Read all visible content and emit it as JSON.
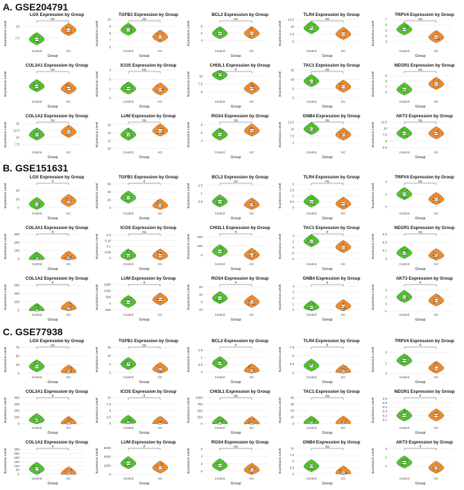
{
  "figure": {
    "groups": [
      "Control",
      "KC"
    ],
    "x_label": "Group",
    "y_label": "Expression Level",
    "colors": {
      "control": "#4fc42b",
      "kc": "#f28a2a",
      "bar": "#555555",
      "box": "#ffffff"
    }
  },
  "sections": [
    {
      "title": "A.  GSE204791"
    },
    {
      "title": "B.  GSE151631"
    },
    {
      "title": "C.  GSE77938"
    }
  ],
  "chart_data": [
    {
      "type": "violin",
      "section": "A",
      "gene": "LOX",
      "title": "LOX Expression by Group",
      "sig": "ns",
      "ylim": [
        5.5,
        11.5
      ],
      "ticks": [
        7.5,
        10.0
      ],
      "median": [
        7.2,
        9.2
      ]
    },
    {
      "type": "violin",
      "section": "A",
      "gene": "TGFB1",
      "title": "TGFB1 Expression by Group",
      "sig": "ns",
      "ylim": [
        6,
        10
      ],
      "ticks": [
        6,
        7,
        8,
        9,
        10
      ],
      "median": [
        8.5,
        7.5
      ]
    },
    {
      "type": "violin",
      "section": "A",
      "gene": "BCL2",
      "title": "BCL2 Expression by Group",
      "sig": "ns",
      "ylim": [
        3,
        7
      ],
      "ticks": [
        4,
        5,
        6
      ],
      "median": [
        5.0,
        5.0
      ]
    },
    {
      "type": "violin",
      "section": "A",
      "gene": "TLR4",
      "title": "TLR4 Expression by Group",
      "sig": "ns",
      "ylim": [
        3,
        12.5
      ],
      "ticks": [
        5.0,
        7.5,
        10.0,
        12.5
      ],
      "median": [
        9.5,
        7.5
      ]
    },
    {
      "type": "violin",
      "section": "A",
      "gene": "TRPV4",
      "title": "TRPV4 Expression by Group",
      "sig": "ns",
      "ylim": [
        2,
        7
      ],
      "ticks": [
        3,
        4,
        5,
        6,
        7
      ],
      "median": [
        5.2,
        3.8
      ]
    },
    {
      "type": "violin",
      "section": "A",
      "gene": "COL3A1",
      "title": "COL3A1 Expression by Group",
      "sig": "ns",
      "ylim": [
        6,
        12
      ],
      "ticks": [],
      "median": [
        8.5,
        8.0
      ]
    },
    {
      "type": "violin",
      "section": "A",
      "gene": "ICOS",
      "title": "ICOS Expression by Group",
      "sig": "ns",
      "ylim": [
        0,
        3
      ],
      "ticks": [
        0,
        1,
        2,
        3
      ],
      "median": [
        1.0,
        0.9
      ]
    },
    {
      "type": "violin",
      "section": "A",
      "gene": "CHI3L1",
      "title": "CHI3L1 Expression by Group",
      "sig": "#",
      "ylim": [
        3,
        12
      ],
      "ticks": [
        5.0,
        7.5,
        10.0
      ],
      "median": [
        10.5,
        6.0
      ]
    },
    {
      "type": "violin",
      "section": "A",
      "gene": "TAC1",
      "title": "TAC1 Expression by Group",
      "sig": "ns",
      "ylim": [
        0,
        15
      ],
      "ticks": [
        0,
        5,
        10,
        15
      ],
      "median": [
        9,
        6
      ]
    },
    {
      "type": "violin",
      "section": "A",
      "gene": "NEGR1",
      "title": "NEGR1 Expression by Group",
      "sig": "ns",
      "ylim": [
        5,
        10
      ],
      "ticks": [
        6,
        7,
        8,
        9
      ],
      "median": [
        6.5,
        7.5
      ]
    },
    {
      "type": "violin",
      "section": "A",
      "gene": "COL1A2",
      "title": "COL1A2 Expression by Group",
      "sig": "ns",
      "ylim": [
        6,
        16
      ],
      "ticks": [
        7.5,
        10.0,
        12.5,
        15.0
      ],
      "median": [
        11,
        12
      ]
    },
    {
      "type": "violin",
      "section": "A",
      "gene": "LUM",
      "title": "LUM Expression by Group",
      "sig": "ns",
      "ylim": [
        10,
        17
      ],
      "ticks": [
        10,
        12,
        14,
        16
      ],
      "median": [
        13.5,
        14.5
      ]
    },
    {
      "type": "violin",
      "section": "A",
      "gene": "RGS4",
      "title": "RGS4 Expression by Group",
      "sig": "ns",
      "ylim": [
        2,
        9
      ],
      "ticks": [
        4,
        6,
        8
      ],
      "median": [
        5.5,
        6.5
      ]
    },
    {
      "type": "violin",
      "section": "A",
      "gene": "GNB4",
      "title": "GNB4 Expression by Group",
      "sig": "ns",
      "ylim": [
        3,
        13
      ],
      "ticks": [
        5.0,
        7.5,
        10.0,
        12.5
      ],
      "median": [
        10,
        8
      ]
    },
    {
      "type": "violin",
      "section": "A",
      "gene": "AKT3",
      "title": "AKT3 Expression by Group",
      "sig": "ns",
      "ylim": [
        2,
        13
      ],
      "ticks": [
        2.5,
        5.0,
        7.5,
        10.0,
        12.5
      ],
      "median": [
        8,
        8
      ]
    },
    {
      "type": "violin",
      "section": "B",
      "gene": "LOX",
      "title": "LOX Expression by Group",
      "sig": "#",
      "ylim": [
        -5,
        60
      ],
      "ticks": [
        0,
        20,
        40
      ],
      "median": [
        8,
        15
      ]
    },
    {
      "type": "violin",
      "section": "B",
      "gene": "TGFB1",
      "title": "TGFB1 Expression by Group",
      "sig": "#",
      "ylim": [
        -5,
        65
      ],
      "ticks": [
        0,
        20,
        40,
        60
      ],
      "median": [
        25,
        5
      ]
    },
    {
      "type": "violin",
      "section": "B",
      "gene": "BCL2",
      "title": "BCL2 Expression by Group",
      "sig": "ns",
      "ylim": [
        0,
        1.7
      ],
      "ticks": [
        0.5,
        1.0,
        1.5
      ],
      "median": [
        0.5,
        0.3
      ]
    },
    {
      "type": "violin",
      "section": "B",
      "gene": "TLR4",
      "title": "TLR4 Expression by Group",
      "sig": "ns",
      "ylim": [
        -0.2,
        2.2
      ],
      "ticks": [
        0.0,
        0.5,
        1.0,
        1.5,
        2.0
      ],
      "median": [
        0.5,
        0.3
      ]
    },
    {
      "type": "violin",
      "section": "B",
      "gene": "TRPV4",
      "title": "TRPV4 Expression by Group",
      "sig": "ns",
      "ylim": [
        -0.5,
        4
      ],
      "ticks": [
        0,
        2,
        4
      ],
      "median": [
        2.0,
        1.2
      ]
    },
    {
      "type": "violin",
      "section": "B",
      "gene": "COL3A1",
      "title": "COL3A1 Expression by Group",
      "sig": "#",
      "ylim": [
        -20,
        320
      ],
      "ticks": [
        0,
        100,
        200,
        300
      ],
      "median": [
        0,
        10
      ]
    },
    {
      "type": "violin",
      "section": "B",
      "gene": "ICOS",
      "title": "ICOS Expression by Group",
      "sig": "ns",
      "ylim": [
        -0.02,
        0.22
      ],
      "ticks": [
        0.0,
        0.05,
        0.1,
        0.15,
        0.2
      ],
      "median": [
        0.02,
        0.02
      ]
    },
    {
      "type": "violin",
      "section": "B",
      "gene": "CHI3L1",
      "title": "CHI3L1 Expression by Group",
      "sig": "#",
      "ylim": [
        -60,
        250
      ],
      "ticks": [
        0,
        100,
        200
      ],
      "median": [
        40,
        0
      ]
    },
    {
      "type": "violin",
      "section": "B",
      "gene": "TAC1",
      "title": "TAC1 Expression by Group",
      "sig": "#",
      "ylim": [
        -4.5,
        5
      ],
      "ticks": [
        -4,
        -2,
        0,
        2,
        4
      ],
      "median": [
        2,
        0
      ]
    },
    {
      "type": "violin",
      "section": "B",
      "gene": "NEGR1",
      "title": "NEGR1 Expression by Group",
      "sig": "ns",
      "ylim": [
        -0.02,
        0.32
      ],
      "ticks": [
        0.0,
        0.1,
        0.2,
        0.3
      ],
      "median": [
        0.07,
        0.04
      ]
    },
    {
      "type": "violin",
      "section": "B",
      "gene": "COL1A2",
      "title": "COL1A2 Expression by Group",
      "sig": "#",
      "ylim": [
        -20,
        650
      ],
      "ticks": [
        0,
        200,
        400,
        600
      ],
      "median": [
        0,
        50
      ]
    },
    {
      "type": "violin",
      "section": "B",
      "gene": "LUM",
      "title": "LUM Expression by Group",
      "sig": "#",
      "ylim": [
        -600,
        1600
      ],
      "ticks": [
        -500,
        0,
        500,
        1000,
        1500
      ],
      "median": [
        100,
        300
      ]
    },
    {
      "type": "violin",
      "section": "B",
      "gene": "RGS4",
      "title": "RGS4 Expression by Group",
      "sig": "#",
      "ylim": [
        -12,
        25
      ],
      "ticks": [
        -10,
        0,
        10,
        20
      ],
      "median": [
        5,
        0
      ]
    },
    {
      "type": "violin",
      "section": "B",
      "gene": "GNB4",
      "title": "GNB4 Expression by Group",
      "sig": "#",
      "ylim": [
        -0.2,
        4.5
      ],
      "ticks": [
        0,
        1,
        2,
        3,
        4
      ],
      "median": [
        0.4,
        0.6
      ]
    },
    {
      "type": "violin",
      "section": "B",
      "gene": "AKT3",
      "title": "AKT3 Expression by Group",
      "sig": "#",
      "ylim": [
        -1,
        3
      ],
      "ticks": [
        -1,
        0,
        1,
        2
      ],
      "median": [
        1,
        0.5
      ]
    },
    {
      "type": "violin",
      "section": "C",
      "gene": "LOX",
      "title": "LOX Expression by Group",
      "sig": "ns",
      "ylim": [
        0,
        80
      ],
      "ticks": [
        0,
        25,
        50,
        75
      ],
      "median": [
        20,
        5
      ]
    },
    {
      "type": "violin",
      "section": "C",
      "gene": "TGFB1",
      "title": "TGFB1 Expression by Group",
      "sig": "ns",
      "ylim": [
        -0.5,
        16
      ],
      "ticks": [
        0,
        5,
        10,
        15
      ],
      "median": [
        5,
        2
      ]
    },
    {
      "type": "violin",
      "section": "C",
      "gene": "BCL2",
      "title": "BCL2 Expression by Group",
      "sig": "#",
      "ylim": [
        -0.1,
        1.8
      ],
      "ticks": [
        0.0,
        0.5,
        1.0,
        1.5
      ],
      "median": [
        0.6,
        0.1
      ]
    },
    {
      "type": "violin",
      "section": "C",
      "gene": "TLR4",
      "title": "TLR4 Expression by Group",
      "sig": "#",
      "ylim": [
        -0.3,
        8
      ],
      "ticks": [
        0.0,
        2.5,
        5.0,
        7.5
      ],
      "median": [
        2,
        0.3
      ]
    },
    {
      "type": "violin",
      "section": "C",
      "gene": "TRPV4",
      "title": "TRPV4 Expression by Group",
      "sig": "#",
      "ylim": [
        0,
        2.6
      ],
      "ticks": [
        0,
        1,
        2
      ],
      "median": [
        1.2,
        0.5
      ]
    },
    {
      "type": "violin",
      "section": "C",
      "gene": "COL3A1",
      "title": "COL3A1 Expression by Group",
      "sig": "#",
      "ylim": [
        -10,
        420
      ],
      "ticks": [
        0,
        100,
        200,
        300,
        400
      ],
      "median": [
        50,
        5
      ]
    },
    {
      "type": "violin",
      "section": "C",
      "gene": "ICOS",
      "title": "ICOS Expression by Group",
      "sig": "#",
      "ylim": [
        -0.3,
        10.5
      ],
      "ticks": [
        0.0,
        2.5,
        5.0,
        7.5,
        10.0
      ],
      "median": [
        0.5,
        0.1
      ]
    },
    {
      "type": "violin",
      "section": "C",
      "gene": "CHI3L1",
      "title": "CHI3L1 Expression by Group",
      "sig": "ns",
      "ylim": [
        -20,
        1050
      ],
      "ticks": [
        0,
        250,
        500,
        750,
        1000
      ],
      "median": [
        20,
        10
      ]
    },
    {
      "type": "violin",
      "section": "C",
      "gene": "TAC1",
      "title": "TAC1 Expression by Group",
      "sig": "ns",
      "ylim": [
        -1,
        42
      ],
      "ticks": [
        0,
        10,
        20,
        30,
        40
      ],
      "median": [
        1,
        1
      ]
    },
    {
      "type": "violin",
      "section": "C",
      "gene": "NEGR1",
      "title": "NEGR1 Expression by Group",
      "sig": "#",
      "ylim": [
        0,
        0.65
      ],
      "ticks": [
        0.1,
        0.2,
        0.3,
        0.4,
        0.5,
        0.6
      ],
      "median": [
        0.2,
        0.2
      ]
    },
    {
      "type": "violin",
      "section": "C",
      "gene": "COL1A2",
      "title": "COL1A2 Expression by Group",
      "sig": "#",
      "ylim": [
        -10,
        330
      ],
      "ticks": [
        0,
        50,
        100,
        150,
        200,
        250,
        300
      ],
      "median": [
        60,
        5
      ]
    },
    {
      "type": "violin",
      "section": "C",
      "gene": "LUM",
      "title": "LUM Expression by Group",
      "sig": "#",
      "ylim": [
        -100,
        6200
      ],
      "ticks": [
        0,
        2000,
        4000,
        6000
      ],
      "median": [
        2500,
        1500
      ]
    },
    {
      "type": "violin",
      "section": "C",
      "gene": "RGS4",
      "title": "RGS4 Expression by Group",
      "sig": "ns",
      "ylim": [
        -1,
        6.5
      ],
      "ticks": [
        0,
        2,
        4,
        6
      ],
      "median": [
        1.5,
        0.3
      ]
    },
    {
      "type": "violin",
      "section": "C",
      "gene": "GNB4",
      "title": "GNB4 Expression by Group",
      "sig": "ns",
      "ylim": [
        -0.3,
        10.5
      ],
      "ticks": [
        0.0,
        2.5,
        5.0,
        7.5,
        10.0
      ],
      "median": [
        3,
        0.5
      ]
    },
    {
      "type": "violin",
      "section": "C",
      "gene": "AKT3",
      "title": "AKT3 Expression by Group",
      "sig": "#",
      "ylim": [
        0,
        3.2
      ],
      "ticks": [
        1,
        2,
        3
      ],
      "median": [
        1.4,
        0.8
      ]
    }
  ]
}
